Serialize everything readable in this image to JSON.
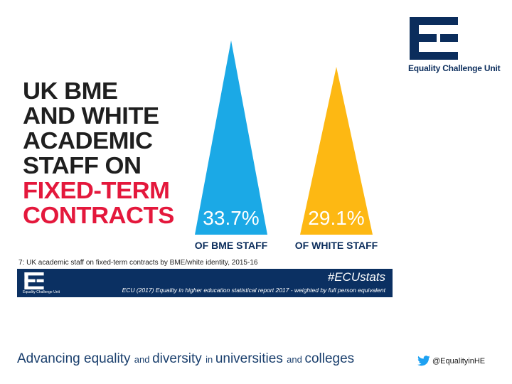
{
  "brand": {
    "org_name": "Equality Challenge Unit",
    "navy": "#0b2d5c",
    "red": "#e4183c"
  },
  "headline": {
    "lines": [
      "UK BME",
      "AND WHITE",
      "ACADEMIC",
      "STAFF ON"
    ],
    "highlight_lines": [
      "FIXED-TERM",
      "CONTRACTS"
    ]
  },
  "chart_data": {
    "type": "bar",
    "shape": "triangle",
    "categories": [
      "OF BME STAFF",
      "OF WHITE STAFF"
    ],
    "values": [
      33.7,
      29.1
    ],
    "value_labels": [
      "33.7%",
      "29.1%"
    ],
    "colors": [
      "#1ba9e6",
      "#fdb813"
    ],
    "unit": "%",
    "ylim": [
      0,
      37
    ]
  },
  "caption": "7: UK academic staff on fixed-term contracts by BME/white identity, 2015-16",
  "footer_bar": {
    "hashtag": "#ECUstats",
    "source": "ECU (2017) Equality in higher education statistical report 2017 - weighted by full person equivalent",
    "mini_org": "Equality Challenge Unit"
  },
  "tagline": {
    "parts": [
      {
        "text": "Advancing ",
        "size": "big"
      },
      {
        "text": "equality ",
        "size": "big"
      },
      {
        "text": "and ",
        "size": "small"
      },
      {
        "text": "diversity ",
        "size": "big"
      },
      {
        "text": "in ",
        "size": "small"
      },
      {
        "text": "universities ",
        "size": "big"
      },
      {
        "text": "and ",
        "size": "small"
      },
      {
        "text": "colleges",
        "size": "big"
      }
    ]
  },
  "social": {
    "icon": "twitter-icon",
    "handle": "@EqualityinHE"
  }
}
